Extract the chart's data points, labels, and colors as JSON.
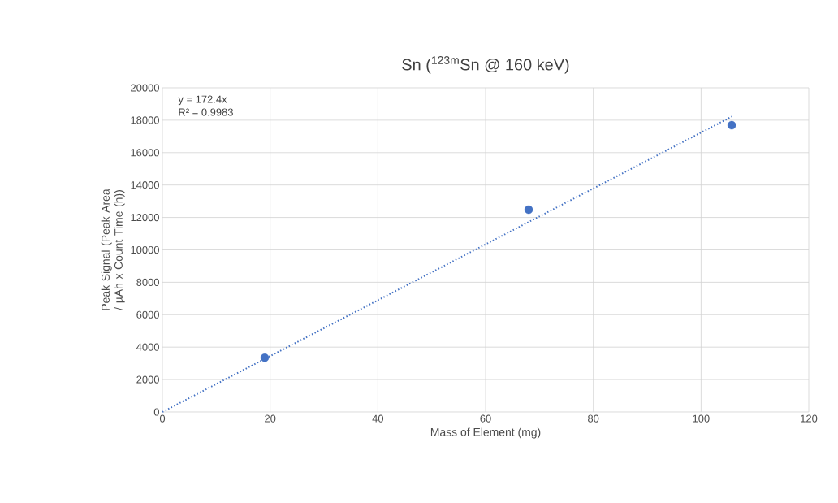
{
  "chart_data": {
    "type": "scatter",
    "title": "Sn ($^{123m}$Sn @ 160 keV)",
    "xlabel": "Mass of Element (mg)",
    "ylabel": "Peak Signal (Peak Area / µAh x Count Time (h))",
    "annotations": [
      "y = 172.4x",
      "R² = 0.9983"
    ],
    "x": [
      19.0,
      68.0,
      105.7
    ],
    "series": [
      {
        "color": "#4472c4",
        "marker": "circle",
        "values": [
          3350,
          12480,
          17690
        ]
      },
      {
        "type": "line",
        "color": "#4472c4",
        "line_style": "dotted",
        "marker": "none",
        "x": [
          0,
          105.7
        ],
        "values": [
          0,
          18220
        ]
      }
    ],
    "xlim": [
      0,
      120
    ],
    "xticks": [
      0,
      20,
      40,
      60,
      80,
      100,
      120
    ],
    "ylim": [
      0,
      20000
    ],
    "yticks": [
      0,
      2000,
      4000,
      6000,
      8000,
      10000,
      12000,
      14000,
      16000,
      18000,
      20000
    ],
    "grid": true
  }
}
